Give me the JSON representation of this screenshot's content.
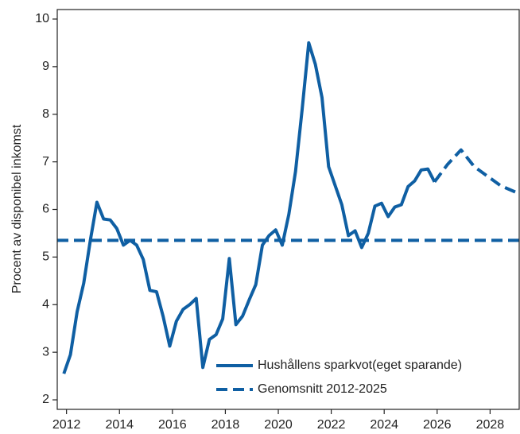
{
  "chart_data": {
    "type": "line",
    "ylabel": "Procent av disponibel inkomst",
    "xlim": [
      2011.65,
      2029.1
    ],
    "xticks": [
      2012,
      2014,
      2016,
      2018,
      2020,
      2022,
      2024,
      2026,
      2028
    ],
    "ylim": [
      1.8,
      10.2
    ],
    "yticks": [
      2,
      3,
      4,
      5,
      6,
      7,
      8,
      9,
      10
    ],
    "legend": "lower center",
    "series": [
      {
        "name": "Hushållens sparkvot(eget sparande)",
        "color": "#0f5fa3",
        "style": "solid",
        "x": [
          2011.9,
          2012.15,
          2012.4,
          2012.65,
          2012.9,
          2013.15,
          2013.4,
          2013.65,
          2013.9,
          2014.15,
          2014.4,
          2014.65,
          2014.9,
          2015.15,
          2015.4,
          2015.65,
          2015.9,
          2016.15,
          2016.4,
          2016.65,
          2016.9,
          2017.15,
          2017.4,
          2017.65,
          2017.9,
          2018.15,
          2018.4,
          2018.65,
          2018.9,
          2019.15,
          2019.4,
          2019.65,
          2019.9,
          2020.15,
          2020.4,
          2020.65,
          2020.9,
          2021.15,
          2021.4,
          2021.65,
          2021.9,
          2022.15,
          2022.4,
          2022.65,
          2022.9,
          2023.15,
          2023.4,
          2023.65,
          2023.9,
          2024.15,
          2024.4,
          2024.65,
          2024.9,
          2025.15,
          2025.4,
          2025.65,
          2025.9
        ],
        "values": [
          2.55,
          2.95,
          3.85,
          4.45,
          5.35,
          6.15,
          5.8,
          5.78,
          5.6,
          5.25,
          5.35,
          5.25,
          4.95,
          4.3,
          4.27,
          3.75,
          3.13,
          3.65,
          3.9,
          4.0,
          4.13,
          2.68,
          3.27,
          3.37,
          3.7,
          4.97,
          3.58,
          3.76,
          4.1,
          4.42,
          5.25,
          5.45,
          5.57,
          5.25,
          5.9,
          6.8,
          8.1,
          9.5,
          9.05,
          8.35,
          6.9,
          6.5,
          6.1,
          5.45,
          5.55,
          5.2,
          5.5,
          6.07,
          6.13,
          5.85,
          6.05,
          6.1,
          6.48,
          6.6,
          6.83,
          6.85,
          6.58
        ]
      },
      {
        "color": "#0f5fa3",
        "style": "dashed",
        "x": [
          2025.9,
          2026.4,
          2026.9,
          2027.4,
          2027.9,
          2028.4,
          2029.1
        ],
        "values": [
          6.58,
          6.95,
          7.25,
          6.9,
          6.7,
          6.5,
          6.33
        ]
      }
    ],
    "reference_line": {
      "name": "Genomsnitt 2012-2025",
      "value": 5.35,
      "color": "#0f5fa3",
      "style": "dashed"
    }
  }
}
